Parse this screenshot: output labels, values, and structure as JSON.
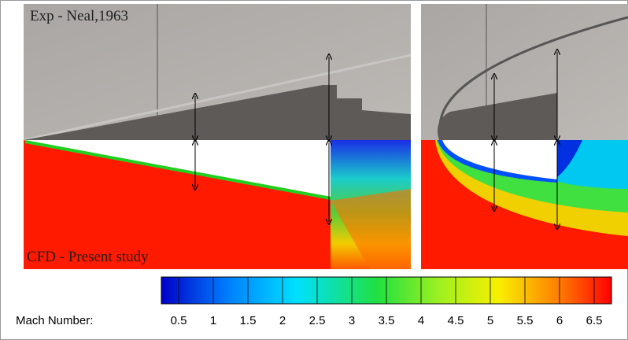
{
  "panels": {
    "experiment_label": "Exp - Neal,1963",
    "cfd_label": "CFD - Present study"
  },
  "colorbar": {
    "label": "Mach Number:",
    "lim": [
      0.25,
      6.75
    ],
    "ticks": [
      0.5,
      1,
      1.5,
      2,
      2.5,
      3,
      3.5,
      4,
      4.5,
      5,
      5.5,
      6,
      6.5
    ]
  }
}
